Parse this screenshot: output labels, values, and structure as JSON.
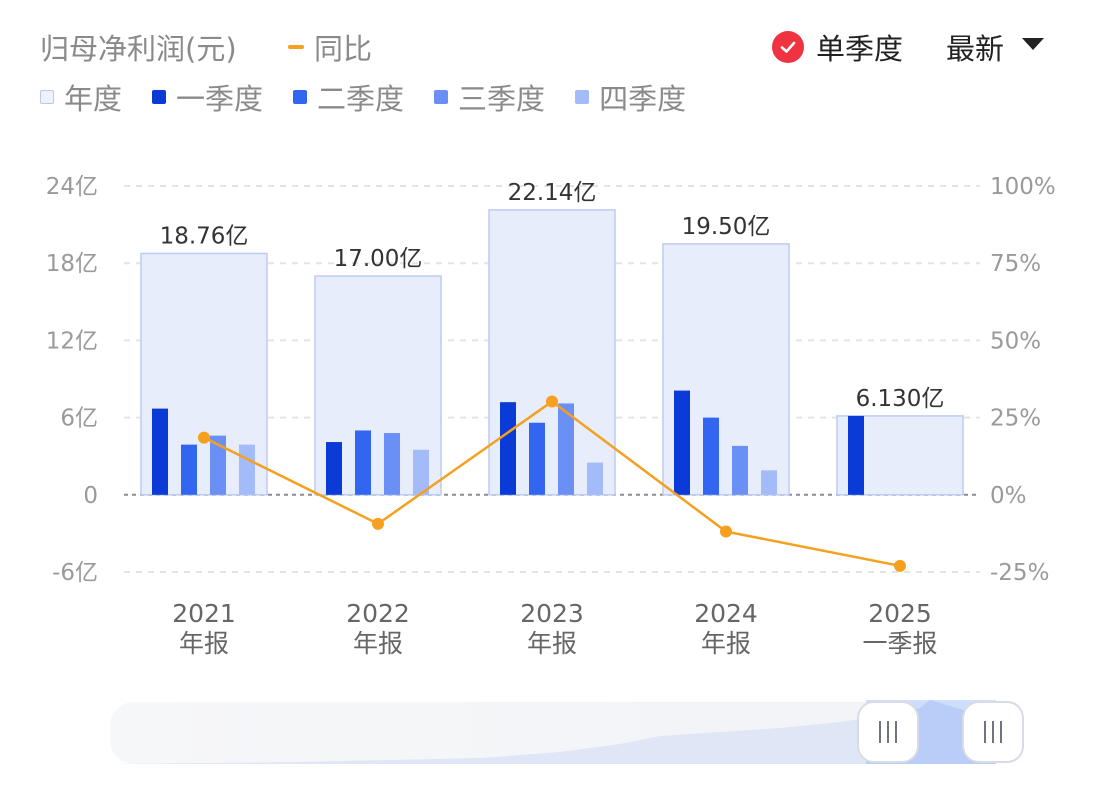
{
  "header": {
    "title": "归母净利润(元)",
    "yoy_label": "同比",
    "single_quarter_label": "单季度",
    "latest_label": "最新"
  },
  "legend": [
    {
      "label": "年度",
      "color": "#e8edfc"
    },
    {
      "label": "一季度",
      "color": "#0a3bd6"
    },
    {
      "label": "二季度",
      "color": "#3366f0"
    },
    {
      "label": "三季度",
      "color": "#6b90f5"
    },
    {
      "label": "四季度",
      "color": "#a3bbf9"
    }
  ],
  "chart_data": {
    "type": "bar",
    "categories": [
      [
        "2021",
        "年报"
      ],
      [
        "2022",
        "年报"
      ],
      [
        "2023",
        "年报"
      ],
      [
        "2024",
        "年报"
      ],
      [
        "2025",
        "一季报"
      ]
    ],
    "annual": {
      "name": "年度",
      "values": [
        18.76,
        17.0,
        22.14,
        19.5,
        6.13
      ],
      "labels": [
        "18.76亿",
        "17.00亿",
        "22.14亿",
        "19.50亿",
        "6.130亿"
      ]
    },
    "series": [
      {
        "name": "一季度",
        "values": [
          6.7,
          4.1,
          7.2,
          8.1,
          6.13
        ]
      },
      {
        "name": "二季度",
        "values": [
          3.9,
          5.0,
          5.6,
          6.0,
          null
        ]
      },
      {
        "name": "三季度",
        "values": [
          4.6,
          4.8,
          7.1,
          3.8,
          null
        ]
      },
      {
        "name": "四季度",
        "values": [
          3.9,
          3.5,
          2.5,
          1.9,
          null
        ]
      }
    ],
    "yoy": {
      "name": "同比",
      "values": [
        18.5,
        -9.4,
        30.2,
        -11.9,
        -23.0
      ],
      "color": "#f5a01e"
    },
    "y_left": {
      "min": -6,
      "max": 24,
      "ticks": [
        24,
        18,
        12,
        6,
        0,
        -6
      ],
      "tick_labels": [
        "24亿",
        "18亿",
        "12亿",
        "6亿",
        "0",
        "-6亿"
      ]
    },
    "y_right": {
      "min": -25,
      "max": 100,
      "ticks": [
        100,
        75,
        50,
        25,
        0,
        -25
      ],
      "tick_labels": [
        "100%",
        "75%",
        "50%",
        "25%",
        "0%",
        "-25%"
      ]
    },
    "grid": true
  },
  "scrollbar": {
    "handle_glyph": "III"
  }
}
